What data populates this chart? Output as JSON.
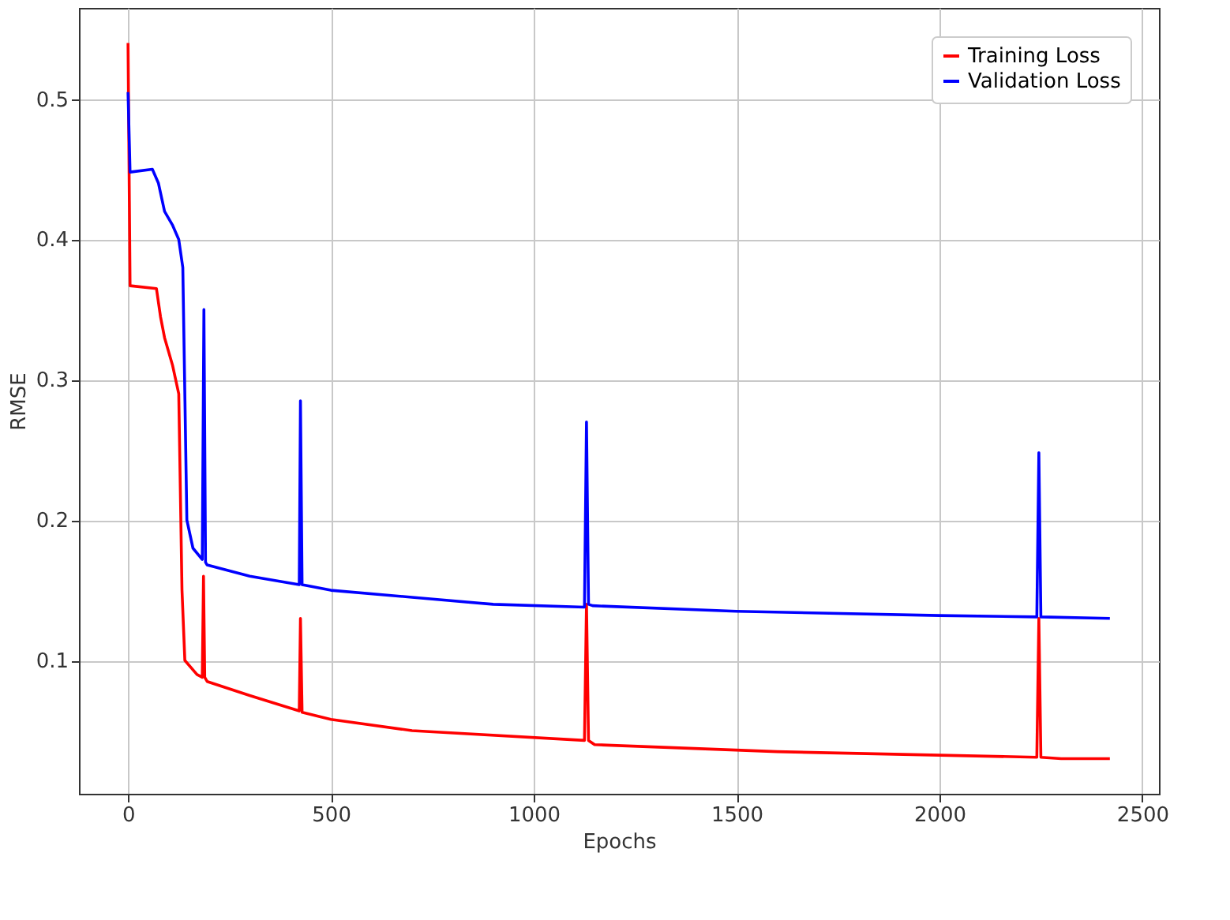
{
  "chart_data": {
    "type": "line",
    "xlabel": "Epochs",
    "ylabel": "RMSE",
    "xlim": [
      -121,
      2541
    ],
    "xticks": [
      0,
      500,
      1000,
      1500,
      2000,
      2500
    ],
    "ylim": [
      0.005,
      0.565
    ],
    "yticks": [
      0.1,
      0.2,
      0.3,
      0.4,
      0.5
    ],
    "grid": true,
    "legend": "top right",
    "line_style": "solid",
    "marker": "none",
    "series": [
      {
        "name": "Training Loss",
        "color": "#ff0000",
        "x": [
          0,
          5,
          70,
          80,
          90,
          110,
          125,
          133,
          140,
          170,
          183,
          186,
          189,
          195,
          300,
          422,
          425,
          429,
          500,
          700,
          1125,
          1130,
          1135,
          1150,
          1600,
          2240,
          2245,
          2250,
          2300,
          2420
        ],
        "values": [
          0.54,
          0.367,
          0.365,
          0.345,
          0.33,
          0.31,
          0.29,
          0.15,
          0.1,
          0.09,
          0.088,
          0.16,
          0.088,
          0.085,
          0.075,
          0.064,
          0.13,
          0.063,
          0.058,
          0.05,
          0.043,
          0.14,
          0.043,
          0.04,
          0.035,
          0.031,
          0.13,
          0.031,
          0.03,
          0.03
        ]
      },
      {
        "name": "Validation Loss",
        "color": "#0000ff",
        "x": [
          0,
          5,
          60,
          75,
          90,
          110,
          125,
          135,
          145,
          160,
          183,
          187,
          191,
          195,
          300,
          422,
          425,
          429,
          500,
          700,
          900,
          1125,
          1130,
          1135,
          1145,
          1500,
          2000,
          2240,
          2245,
          2250,
          2420
        ],
        "values": [
          0.505,
          0.448,
          0.45,
          0.44,
          0.42,
          0.41,
          0.4,
          0.38,
          0.2,
          0.18,
          0.172,
          0.35,
          0.17,
          0.168,
          0.16,
          0.154,
          0.285,
          0.154,
          0.15,
          0.145,
          0.14,
          0.138,
          0.27,
          0.14,
          0.139,
          0.135,
          0.132,
          0.131,
          0.248,
          0.131,
          0.13
        ]
      }
    ]
  }
}
